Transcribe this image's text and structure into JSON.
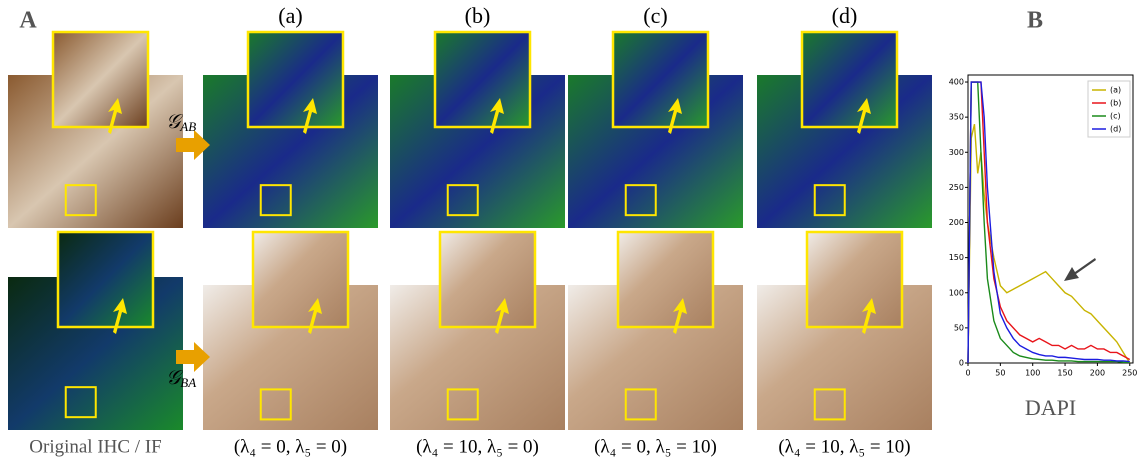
{
  "panel_a": {
    "label": "A",
    "columns": [
      "(a)",
      "(b)",
      "(c)",
      "(d)"
    ],
    "generators": [
      {
        "symbol": "𝒢",
        "subscript": "AB"
      },
      {
        "symbol": "𝒢",
        "subscript": "BA"
      }
    ],
    "captions": [
      "Original IHC / IF",
      "(λ₄ = 0,  λ₅ = 0)",
      "(λ₄ = 10, λ₅ = 0)",
      "(λ₄ = 0,  λ₅ = 10)",
      "(λ₄ = 10, λ₅ = 10)"
    ]
  },
  "chart_data": {
    "type": "line",
    "panel_label": "B",
    "x_label": "DAPI",
    "x": [
      0,
      5,
      10,
      15,
      20,
      25,
      30,
      40,
      50,
      60,
      70,
      80,
      90,
      100,
      110,
      120,
      130,
      140,
      150,
      160,
      170,
      180,
      190,
      200,
      210,
      220,
      230,
      240,
      250
    ],
    "series": [
      {
        "name": "(a)",
        "color": "#c8b400",
        "values": [
          0,
          320,
          340,
          270,
          300,
          240,
          200,
          150,
          110,
          100,
          105,
          110,
          115,
          120,
          125,
          130,
          120,
          110,
          100,
          95,
          85,
          75,
          70,
          60,
          50,
          40,
          30,
          15,
          0
        ]
      },
      {
        "name": "(b)",
        "color": "#e8141a",
        "values": [
          0,
          400,
          400,
          400,
          400,
          300,
          200,
          120,
          80,
          60,
          50,
          40,
          35,
          30,
          35,
          30,
          25,
          25,
          20,
          25,
          20,
          20,
          25,
          20,
          20,
          15,
          15,
          10,
          5
        ]
      },
      {
        "name": "(c)",
        "color": "#1a8a1a",
        "values": [
          0,
          400,
          400,
          400,
          300,
          200,
          120,
          60,
          35,
          25,
          15,
          10,
          8,
          6,
          5,
          4,
          4,
          3,
          3,
          3,
          2,
          2,
          2,
          2,
          2,
          2,
          2,
          1,
          1
        ]
      },
      {
        "name": "(d)",
        "color": "#1c1ce0",
        "values": [
          0,
          400,
          400,
          400,
          400,
          350,
          250,
          130,
          70,
          50,
          35,
          25,
          20,
          15,
          12,
          10,
          10,
          8,
          8,
          7,
          6,
          5,
          5,
          5,
          4,
          4,
          3,
          3,
          2
        ]
      }
    ],
    "xlim": [
      0,
      255
    ],
    "xticks": [
      0,
      50,
      100,
      150,
      200,
      250
    ],
    "ylim": [
      0,
      410
    ],
    "yticks": [
      0,
      50,
      100,
      150,
      200,
      250,
      300,
      350,
      400
    ],
    "legend": "upper right"
  }
}
